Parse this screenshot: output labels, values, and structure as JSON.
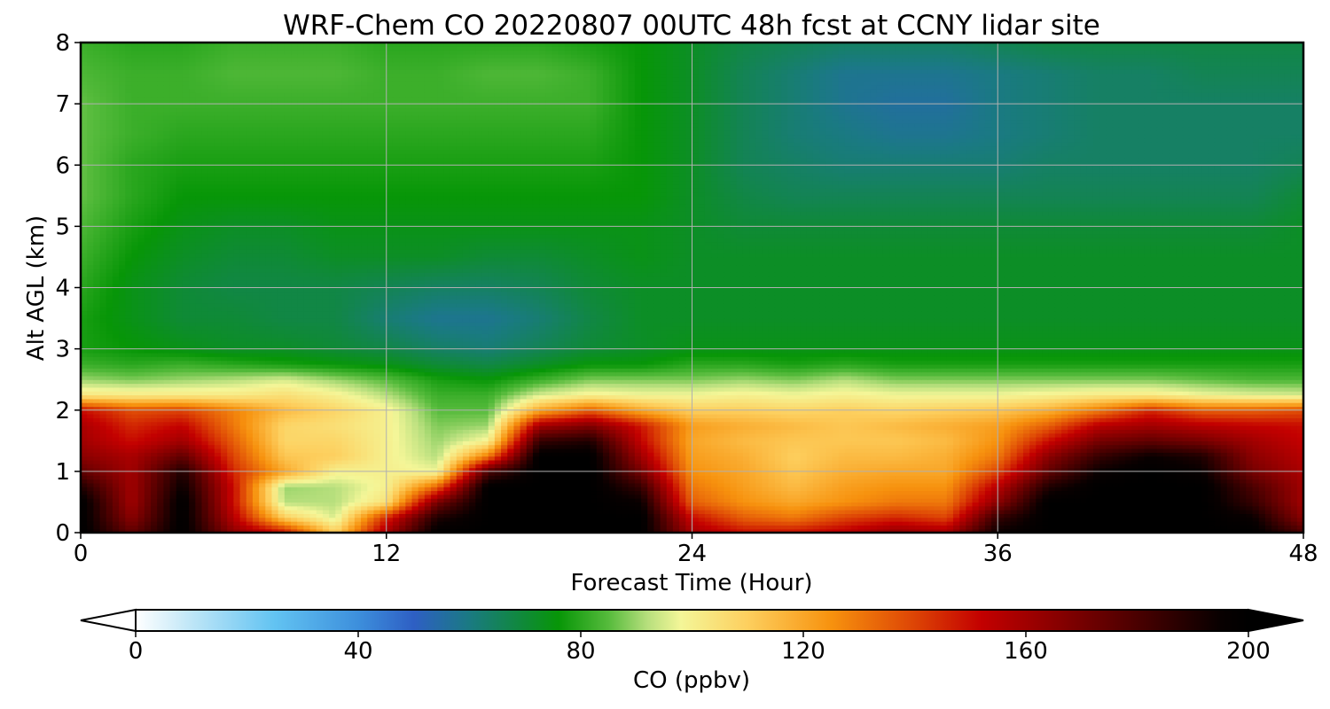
{
  "chart_data": {
    "type": "heatmap",
    "title": "WRF-Chem CO  20220807 00UTC 48h fcst at CCNY lidar site",
    "xlabel": "Forecast Time (Hour)",
    "ylabel": "Alt AGL (km)",
    "xlim": [
      0,
      48
    ],
    "ylim": [
      0,
      8
    ],
    "x_ticks": [
      "0",
      "12",
      "24",
      "36",
      "48"
    ],
    "y_ticks": [
      "0",
      "1",
      "2",
      "3",
      "4",
      "5",
      "6",
      "7",
      "8"
    ],
    "grid": true,
    "x_hours": [
      0,
      2,
      4,
      6,
      8,
      10,
      12,
      14,
      16,
      18,
      20,
      22,
      24,
      26,
      28,
      30,
      32,
      34,
      36,
      38,
      40,
      42,
      44,
      46,
      48
    ],
    "alt_km": [
      0.0,
      0.25,
      0.5,
      0.75,
      1.0,
      1.25,
      1.5,
      1.75,
      2.0,
      2.25,
      2.5,
      2.75,
      3.0,
      3.5,
      4.0,
      4.5,
      5.0,
      5.5,
      6.0,
      6.5,
      7.0,
      7.5,
      8.0
    ],
    "co_ppbv": [
      [
        200,
        175,
        200,
        165,
        150,
        110,
        160,
        200,
        200,
        200,
        200,
        200,
        160,
        150,
        150,
        155,
        165,
        160,
        195,
        200,
        200,
        200,
        200,
        200,
        180
      ],
      [
        200,
        165,
        200,
        155,
        110,
        95,
        145,
        190,
        200,
        200,
        200,
        200,
        150,
        135,
        130,
        140,
        145,
        140,
        185,
        200,
        200,
        200,
        200,
        195,
        165
      ],
      [
        200,
        160,
        200,
        150,
        92,
        92,
        105,
        170,
        200,
        200,
        200,
        195,
        135,
        125,
        120,
        125,
        130,
        130,
        165,
        200,
        200,
        200,
        200,
        185,
        160
      ],
      [
        190,
        160,
        195,
        150,
        90,
        92,
        100,
        135,
        200,
        200,
        200,
        185,
        130,
        122,
        115,
        122,
        125,
        125,
        155,
        190,
        200,
        200,
        200,
        180,
        160
      ],
      [
        175,
        160,
        190,
        145,
        120,
        100,
        100,
        98,
        180,
        200,
        200,
        170,
        125,
        120,
        112,
        118,
        120,
        120,
        140,
        175,
        195,
        200,
        195,
        170,
        158
      ],
      [
        165,
        158,
        175,
        140,
        112,
        110,
        100,
        92,
        130,
        200,
        200,
        160,
        122,
        118,
        110,
        115,
        115,
        118,
        130,
        165,
        185,
        195,
        190,
        165,
        155
      ],
      [
        160,
        150,
        160,
        135,
        108,
        108,
        100,
        90,
        100,
        185,
        190,
        152,
        120,
        115,
        112,
        112,
        112,
        115,
        125,
        150,
        170,
        175,
        170,
        160,
        152
      ],
      [
        158,
        145,
        152,
        130,
        108,
        105,
        100,
        88,
        90,
        160,
        168,
        148,
        122,
        118,
        115,
        112,
        115,
        118,
        122,
        135,
        155,
        160,
        155,
        152,
        150
      ],
      [
        150,
        138,
        140,
        128,
        115,
        108,
        100,
        85,
        85,
        120,
        135,
        120,
        110,
        110,
        108,
        110,
        108,
        110,
        112,
        118,
        130,
        145,
        135,
        135,
        138
      ],
      [
        103,
        102,
        102,
        102,
        105,
        100,
        92,
        82,
        82,
        95,
        100,
        98,
        98,
        100,
        98,
        100,
        98,
        98,
        98,
        100,
        102,
        102,
        98,
        96,
        95
      ],
      [
        90,
        88,
        90,
        92,
        95,
        90,
        85,
        78,
        76,
        82,
        88,
        88,
        88,
        90,
        88,
        92,
        88,
        88,
        88,
        88,
        88,
        88,
        86,
        84,
        84
      ],
      [
        82,
        80,
        82,
        80,
        78,
        76,
        74,
        70,
        68,
        72,
        76,
        76,
        80,
        80,
        78,
        80,
        78,
        78,
        78,
        78,
        78,
        78,
        78,
        78,
        78
      ],
      [
        78,
        76,
        74,
        72,
        72,
        70,
        68,
        64,
        62,
        66,
        70,
        72,
        74,
        74,
        74,
        74,
        74,
        74,
        74,
        74,
        74,
        74,
        74,
        74,
        74
      ],
      [
        78,
        74,
        70,
        70,
        68,
        68,
        62,
        58,
        58,
        62,
        68,
        72,
        72,
        72,
        72,
        72,
        72,
        72,
        72,
        72,
        72,
        72,
        72,
        72,
        72
      ],
      [
        80,
        74,
        70,
        68,
        68,
        68,
        66,
        64,
        64,
        66,
        70,
        72,
        72,
        72,
        72,
        72,
        72,
        72,
        72,
        72,
        72,
        72,
        72,
        72,
        72
      ],
      [
        82,
        76,
        72,
        70,
        70,
        72,
        72,
        72,
        70,
        70,
        72,
        74,
        72,
        72,
        72,
        72,
        72,
        72,
        72,
        72,
        72,
        72,
        72,
        72,
        72
      ],
      [
        84,
        78,
        74,
        72,
        72,
        74,
        74,
        74,
        74,
        74,
        74,
        74,
        72,
        70,
        70,
        70,
        70,
        70,
        70,
        70,
        70,
        70,
        70,
        70,
        72
      ],
      [
        86,
        80,
        76,
        76,
        76,
        76,
        76,
        76,
        76,
        76,
        76,
        76,
        72,
        68,
        66,
        66,
        66,
        66,
        66,
        66,
        66,
        66,
        66,
        66,
        70
      ],
      [
        86,
        80,
        78,
        78,
        78,
        78,
        78,
        78,
        78,
        78,
        78,
        76,
        72,
        66,
        64,
        62,
        62,
        62,
        62,
        64,
        64,
        64,
        64,
        64,
        66
      ],
      [
        86,
        82,
        80,
        80,
        80,
        80,
        80,
        80,
        80,
        80,
        80,
        76,
        72,
        66,
        62,
        60,
        58,
        58,
        60,
        62,
        64,
        64,
        64,
        64,
        64
      ],
      [
        86,
        82,
        82,
        82,
        82,
        82,
        82,
        82,
        82,
        82,
        82,
        76,
        72,
        66,
        62,
        58,
        56,
        56,
        60,
        62,
        64,
        64,
        64,
        64,
        64
      ],
      [
        84,
        82,
        82,
        84,
        84,
        84,
        82,
        82,
        84,
        84,
        82,
        76,
        72,
        66,
        62,
        58,
        58,
        58,
        60,
        62,
        64,
        64,
        66,
        66,
        66
      ],
      [
        82,
        80,
        80,
        82,
        82,
        82,
        80,
        80,
        80,
        80,
        78,
        76,
        72,
        68,
        66,
        64,
        64,
        64,
        66,
        68,
        68,
        68,
        68,
        68,
        68
      ]
    ],
    "colorbar": {
      "label": "CO  (ppbv)",
      "min": 0,
      "max": 200,
      "ticks": [
        "0",
        "40",
        "80",
        "120",
        "160",
        "200"
      ],
      "extend": "both",
      "stops": [
        {
          "v": 0,
          "c": "#ffffff"
        },
        {
          "v": 10,
          "c": "#bfe6f7"
        },
        {
          "v": 25,
          "c": "#62c3f2"
        },
        {
          "v": 40,
          "c": "#3d8fdc"
        },
        {
          "v": 50,
          "c": "#2e5fc4"
        },
        {
          "v": 60,
          "c": "#1a7a82"
        },
        {
          "v": 70,
          "c": "#0f8a36"
        },
        {
          "v": 76,
          "c": "#079607"
        },
        {
          "v": 85,
          "c": "#56bb3c"
        },
        {
          "v": 92,
          "c": "#b7df7d"
        },
        {
          "v": 98,
          "c": "#f4f698"
        },
        {
          "v": 110,
          "c": "#fdcf5e"
        },
        {
          "v": 125,
          "c": "#f7920e"
        },
        {
          "v": 140,
          "c": "#dd4405"
        },
        {
          "v": 152,
          "c": "#c30000"
        },
        {
          "v": 165,
          "c": "#8b0000"
        },
        {
          "v": 180,
          "c": "#4a0000"
        },
        {
          "v": 195,
          "c": "#080000"
        },
        {
          "v": 200,
          "c": "#000000"
        }
      ]
    }
  }
}
